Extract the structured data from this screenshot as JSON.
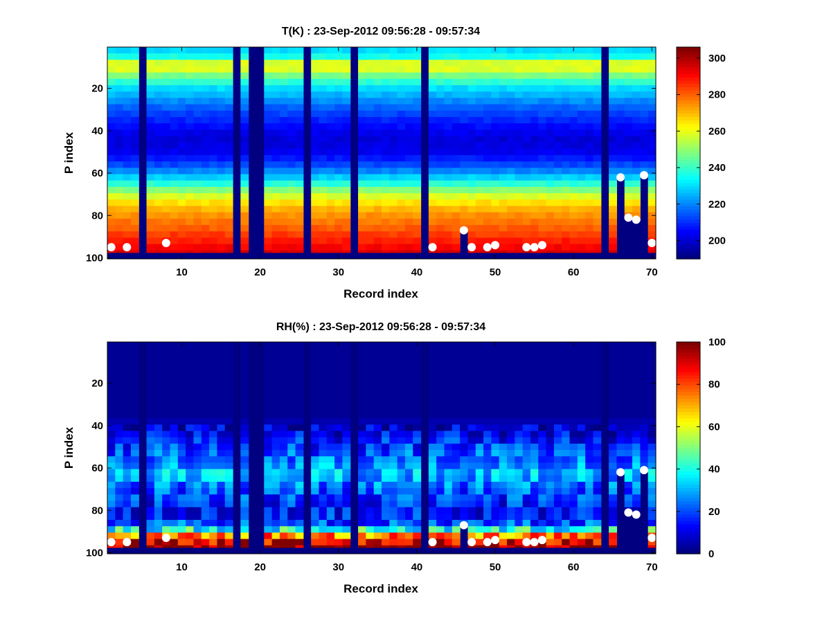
{
  "chart_data": [
    {
      "type": "heatmap",
      "title": "T(K) : 23-Sep-2012 09:56:28 - 09:57:34",
      "xlabel": "Record index",
      "ylabel": "P index",
      "xlim": [
        0.5,
        70.5
      ],
      "ylim": [
        0.5,
        100.5
      ],
      "y_reversed": true,
      "xticks": [
        "10",
        "20",
        "30",
        "40",
        "50",
        "60",
        "70"
      ],
      "yticks": [
        "20",
        "40",
        "60",
        "80",
        "100"
      ],
      "colormap": "jet",
      "colorbar": {
        "clim": [
          190,
          306
        ],
        "ticks": [
          "200",
          "220",
          "240",
          "260",
          "280",
          "300"
        ]
      },
      "missing_records": [
        5,
        17,
        19,
        20,
        26,
        32,
        41,
        64
      ],
      "profile_bottom_levels": 97,
      "record_cutoff_levels": [
        {
          "record": 46,
          "level": 87
        },
        {
          "record": 66,
          "level": 62
        },
        {
          "record": 67,
          "level": 81
        },
        {
          "record": 68,
          "level": 82
        },
        {
          "record": 69,
          "level": 61
        }
      ],
      "profile": {
        "levels": [
          1,
          5,
          8,
          10,
          13,
          20,
          30,
          40,
          45,
          50,
          55,
          60,
          65,
          70,
          75,
          80,
          85,
          90,
          95,
          97
        ],
        "values": [
          228,
          236,
          258,
          263,
          250,
          230,
          214,
          203,
          200,
          203,
          210,
          222,
          238,
          256,
          268,
          275,
          280,
          286,
          292,
          296
        ]
      },
      "markers": [
        {
          "record": 1,
          "level": 95
        },
        {
          "record": 3,
          "level": 95
        },
        {
          "record": 8,
          "level": 93
        },
        {
          "record": 42,
          "level": 95
        },
        {
          "record": 46,
          "level": 87
        },
        {
          "record": 47,
          "level": 95
        },
        {
          "record": 49,
          "level": 95
        },
        {
          "record": 50,
          "level": 94
        },
        {
          "record": 54,
          "level": 95
        },
        {
          "record": 55,
          "level": 95
        },
        {
          "record": 56,
          "level": 94
        },
        {
          "record": 66,
          "level": 62
        },
        {
          "record": 67,
          "level": 81
        },
        {
          "record": 68,
          "level": 82
        },
        {
          "record": 69,
          "level": 61
        },
        {
          "record": 70,
          "level": 93
        }
      ]
    },
    {
      "type": "heatmap",
      "title": "RH(%) : 23-Sep-2012 09:56:28 - 09:57:34",
      "xlabel": "Record index",
      "ylabel": "P index",
      "xlim": [
        0.5,
        70.5
      ],
      "ylim": [
        0.5,
        100.5
      ],
      "y_reversed": true,
      "xticks": [
        "10",
        "20",
        "30",
        "40",
        "50",
        "60",
        "70"
      ],
      "yticks": [
        "20",
        "40",
        "60",
        "80",
        "100"
      ],
      "colormap": "jet",
      "colorbar": {
        "clim": [
          0,
          100
        ],
        "ticks": [
          "0",
          "20",
          "40",
          "60",
          "80",
          "100"
        ]
      },
      "missing_records": [
        5,
        17,
        19,
        20,
        26,
        32,
        41,
        64
      ],
      "profile_bottom_levels": 97,
      "record_cutoff_levels": [
        {
          "record": 46,
          "level": 87
        },
        {
          "record": 66,
          "level": 62
        },
        {
          "record": 67,
          "level": 81
        },
        {
          "record": 68,
          "level": 82
        },
        {
          "record": 69,
          "level": 61
        }
      ],
      "profile": {
        "levels": [
          1,
          35,
          42,
          50,
          56,
          60,
          63,
          66,
          70,
          76,
          82,
          87,
          90,
          92,
          95,
          97
        ],
        "values": [
          2,
          2,
          8,
          18,
          24,
          28,
          32,
          27,
          22,
          16,
          13,
          22,
          50,
          75,
          92,
          98
        ]
      },
      "markers": [
        {
          "record": 1,
          "level": 95
        },
        {
          "record": 3,
          "level": 95
        },
        {
          "record": 8,
          "level": 93
        },
        {
          "record": 42,
          "level": 95
        },
        {
          "record": 46,
          "level": 87
        },
        {
          "record": 47,
          "level": 95
        },
        {
          "record": 49,
          "level": 95
        },
        {
          "record": 50,
          "level": 94
        },
        {
          "record": 54,
          "level": 95
        },
        {
          "record": 55,
          "level": 95
        },
        {
          "record": 56,
          "level": 94
        },
        {
          "record": 66,
          "level": 62
        },
        {
          "record": 67,
          "level": 81
        },
        {
          "record": 68,
          "level": 82
        },
        {
          "record": 69,
          "level": 61
        },
        {
          "record": 70,
          "level": 93
        }
      ]
    }
  ]
}
